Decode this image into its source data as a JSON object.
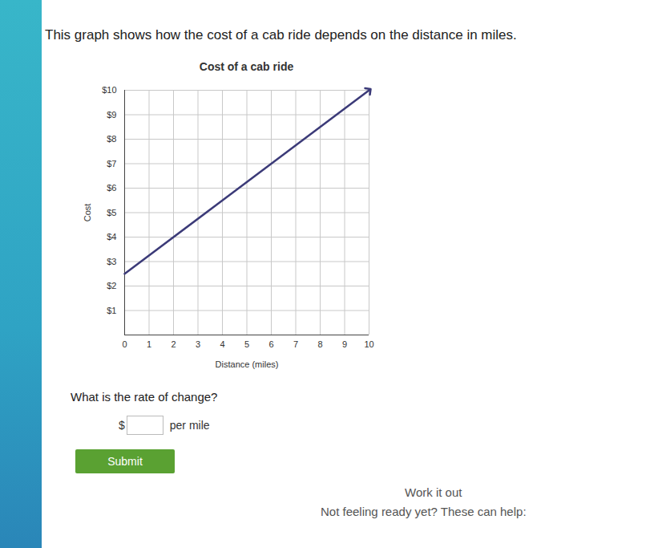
{
  "chart_data": {
    "type": "line",
    "title": "Cost of a cab ride",
    "x_label": "Distance (miles)",
    "y_label": "Cost",
    "x": [
      0,
      10
    ],
    "values": [
      2.5,
      10
    ],
    "color": "#3b3a78",
    "marker": "arrow",
    "xlim": [
      0,
      10
    ],
    "xticks": [
      0,
      1,
      2,
      3,
      4,
      5,
      6,
      7,
      8,
      9,
      10
    ],
    "ylim": [
      0,
      10
    ],
    "yticks": [
      {
        "value": 1,
        "label": "$1"
      },
      {
        "value": 2,
        "label": "$2"
      },
      {
        "value": 3,
        "label": "$3"
      },
      {
        "value": 4,
        "label": "$4"
      },
      {
        "value": 5,
        "label": "$5"
      },
      {
        "value": 6,
        "label": "$6"
      },
      {
        "value": 7,
        "label": "$7"
      },
      {
        "value": 8,
        "label": "$8"
      },
      {
        "value": 9,
        "label": "$9"
      },
      {
        "value": 10,
        "label": "$10"
      }
    ],
    "grid": true
  },
  "page": {
    "intro": "This graph shows how the cost of a cab ride depends on the distance in miles.",
    "question": "What is the rate of change?",
    "answer_prefix": "$",
    "answer_suffix": "per mile",
    "button": "Submit",
    "work": "Work it out",
    "help": "Not feeling ready yet? These can help:"
  }
}
